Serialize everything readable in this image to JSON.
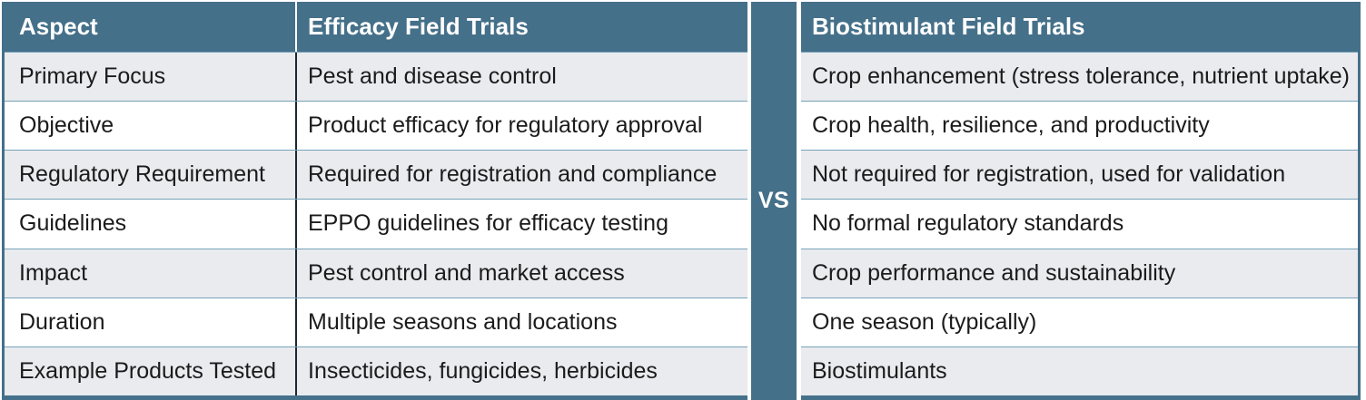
{
  "chart_data": {
    "type": "table",
    "title": "Efficacy Field Trials vs Biostimulant Field Trials",
    "columns": [
      "Aspect",
      "Efficacy Field Trials",
      "Biostimulant Field Trials"
    ],
    "divider_label": "VS",
    "rows": [
      [
        "Primary Focus",
        "Pest and disease control",
        "Crop enhancement (stress tolerance, nutrient uptake)"
      ],
      [
        "Objective",
        "Product efficacy for regulatory approval",
        "Crop health, resilience, and productivity"
      ],
      [
        "Regulatory Requirement",
        "Required for registration and compliance",
        "Not required for registration, used for validation"
      ],
      [
        "Guidelines",
        "EPPO guidelines for efficacy testing",
        "No formal regulatory standards"
      ],
      [
        "Impact",
        "Pest control and market access",
        "Crop performance and sustainability"
      ],
      [
        "Duration",
        "Multiple seasons and locations",
        "One season (typically)"
      ],
      [
        "Example Products Tested",
        "Insecticides, fungicides, herbicides",
        "Biostimulants"
      ]
    ]
  },
  "colors": {
    "slate": "#45708a",
    "row_alt": "#e9ebef",
    "row_line": "#78a2b8",
    "col_divider": "#1c2730",
    "text": "#1b1b1b",
    "header_text": "#ffffff"
  }
}
